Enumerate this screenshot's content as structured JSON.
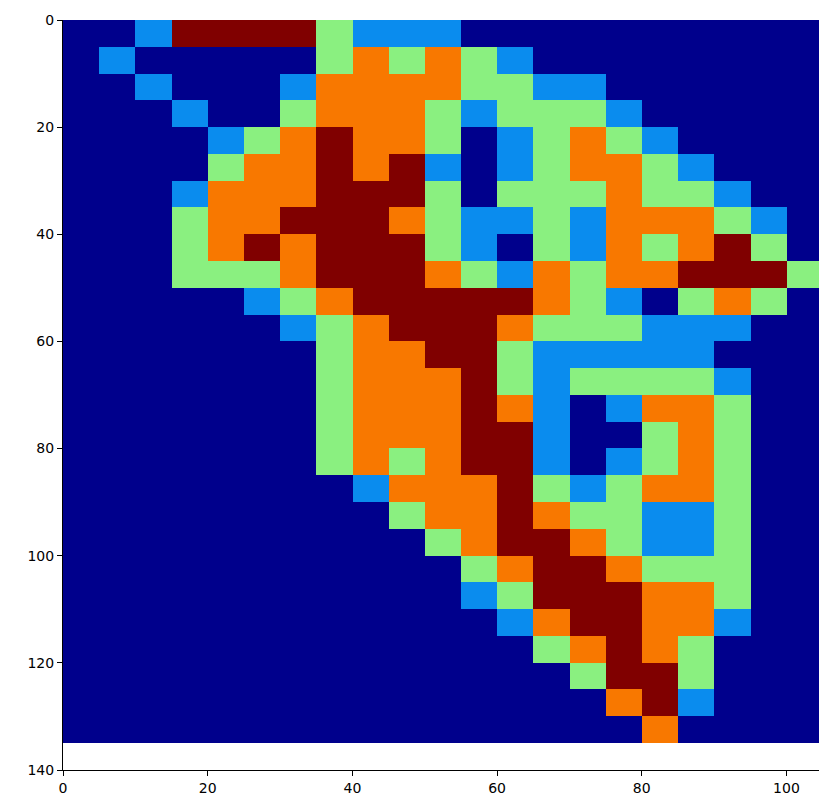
{
  "chart_data": {
    "type": "heatmap",
    "x": [
      2.5,
      7.5,
      12.5,
      17.5,
      22.5,
      27.5,
      32.5,
      37.5,
      42.5,
      47.5,
      52.5,
      57.5,
      62.5,
      67.5,
      72.5,
      77.5,
      82.5,
      87.5,
      92.5,
      97.5,
      102.5
    ],
    "y": [
      2.5,
      7.5,
      12.5,
      17.5,
      22.5,
      27.5,
      32.5,
      37.5,
      42.5,
      47.5,
      52.5,
      57.5,
      62.5,
      67.5,
      72.5,
      77.5,
      82.5,
      87.5,
      92.5,
      97.5,
      102.5,
      107.5,
      112.5,
      117.5,
      122.5,
      127.5,
      132.5
    ],
    "cells": [
      [
        0,
        0,
        1,
        4,
        4,
        4,
        4,
        2,
        1,
        1,
        1,
        0,
        0,
        0,
        0,
        0,
        0,
        0,
        0,
        0,
        0
      ],
      [
        0,
        1,
        0,
        0,
        0,
        0,
        0,
        2,
        3,
        2,
        3,
        2,
        1,
        0,
        0,
        0,
        0,
        0,
        0,
        0,
        0
      ],
      [
        0,
        0,
        1,
        0,
        0,
        0,
        1,
        3,
        3,
        3,
        3,
        2,
        2,
        1,
        1,
        0,
        0,
        0,
        0,
        0,
        0
      ],
      [
        0,
        0,
        0,
        1,
        0,
        0,
        2,
        3,
        3,
        3,
        2,
        1,
        2,
        2,
        2,
        1,
        0,
        0,
        0,
        0,
        0
      ],
      [
        0,
        0,
        0,
        0,
        1,
        2,
        3,
        4,
        3,
        3,
        2,
        0,
        1,
        2,
        3,
        2,
        1,
        0,
        0,
        0,
        0
      ],
      [
        0,
        0,
        0,
        0,
        2,
        3,
        3,
        4,
        3,
        4,
        1,
        0,
        1,
        2,
        3,
        3,
        2,
        1,
        0,
        0,
        0
      ],
      [
        0,
        0,
        0,
        1,
        3,
        3,
        3,
        4,
        4,
        4,
        2,
        0,
        2,
        2,
        2,
        3,
        2,
        2,
        1,
        0,
        0
      ],
      [
        0,
        0,
        0,
        2,
        3,
        3,
        4,
        4,
        4,
        3,
        2,
        1,
        1,
        2,
        1,
        3,
        3,
        3,
        2,
        1,
        0
      ],
      [
        0,
        0,
        0,
        2,
        3,
        4,
        3,
        4,
        4,
        4,
        2,
        1,
        0,
        2,
        1,
        3,
        2,
        3,
        4,
        2,
        0
      ],
      [
        0,
        0,
        0,
        2,
        2,
        2,
        3,
        4,
        4,
        4,
        3,
        2,
        1,
        3,
        2,
        3,
        3,
        4,
        4,
        4,
        2
      ],
      [
        0,
        0,
        0,
        0,
        0,
        1,
        2,
        3,
        4,
        4,
        4,
        4,
        4,
        3,
        2,
        1,
        0,
        2,
        3,
        2,
        0
      ],
      [
        0,
        0,
        0,
        0,
        0,
        0,
        1,
        2,
        3,
        4,
        4,
        4,
        3,
        2,
        2,
        2,
        1,
        1,
        1,
        0,
        0
      ],
      [
        0,
        0,
        0,
        0,
        0,
        0,
        0,
        2,
        3,
        3,
        4,
        4,
        2,
        1,
        1,
        1,
        1,
        1,
        0,
        0,
        0
      ],
      [
        0,
        0,
        0,
        0,
        0,
        0,
        0,
        2,
        3,
        3,
        3,
        4,
        2,
        1,
        2,
        2,
        2,
        2,
        1,
        0,
        0
      ],
      [
        0,
        0,
        0,
        0,
        0,
        0,
        0,
        2,
        3,
        3,
        3,
        4,
        3,
        1,
        0,
        1,
        3,
        3,
        2,
        0,
        0
      ],
      [
        0,
        0,
        0,
        0,
        0,
        0,
        0,
        2,
        3,
        3,
        3,
        4,
        4,
        1,
        0,
        0,
        2,
        3,
        2,
        0,
        0
      ],
      [
        0,
        0,
        0,
        0,
        0,
        0,
        0,
        2,
        3,
        2,
        3,
        4,
        4,
        1,
        0,
        1,
        2,
        3,
        2,
        0,
        0
      ],
      [
        0,
        0,
        0,
        0,
        0,
        0,
        0,
        0,
        1,
        3,
        3,
        3,
        4,
        2,
        1,
        2,
        3,
        3,
        2,
        0,
        0
      ],
      [
        0,
        0,
        0,
        0,
        0,
        0,
        0,
        0,
        0,
        2,
        3,
        3,
        4,
        3,
        2,
        2,
        1,
        1,
        2,
        0,
        0
      ],
      [
        0,
        0,
        0,
        0,
        0,
        0,
        0,
        0,
        0,
        0,
        2,
        3,
        4,
        4,
        3,
        2,
        1,
        1,
        2,
        0,
        0
      ],
      [
        0,
        0,
        0,
        0,
        0,
        0,
        0,
        0,
        0,
        0,
        0,
        2,
        3,
        4,
        4,
        3,
        2,
        2,
        2,
        0,
        0
      ],
      [
        0,
        0,
        0,
        0,
        0,
        0,
        0,
        0,
        0,
        0,
        0,
        1,
        2,
        4,
        4,
        4,
        3,
        3,
        2,
        0,
        0
      ],
      [
        0,
        0,
        0,
        0,
        0,
        0,
        0,
        0,
        0,
        0,
        0,
        0,
        1,
        3,
        4,
        4,
        3,
        3,
        1,
        0,
        0
      ],
      [
        0,
        0,
        0,
        0,
        0,
        0,
        0,
        0,
        0,
        0,
        0,
        0,
        0,
        2,
        3,
        4,
        3,
        2,
        0,
        0,
        0
      ],
      [
        0,
        0,
        0,
        0,
        0,
        0,
        0,
        0,
        0,
        0,
        0,
        0,
        0,
        0,
        2,
        4,
        4,
        2,
        0,
        0,
        0
      ],
      [
        0,
        0,
        0,
        0,
        0,
        0,
        0,
        0,
        0,
        0,
        0,
        0,
        0,
        0,
        0,
        3,
        4,
        1,
        0,
        0,
        0
      ],
      [
        0,
        0,
        0,
        0,
        0,
        0,
        0,
        0,
        0,
        0,
        0,
        0,
        0,
        0,
        0,
        0,
        3,
        0,
        0,
        0,
        0
      ]
    ],
    "zlim": [
      0,
      4
    ],
    "xlim": [
      0,
      104.5
    ],
    "ylim": [
      140,
      0
    ],
    "xticks": [
      0,
      20,
      40,
      60,
      80,
      100
    ],
    "yticks": [
      0,
      20,
      40,
      60,
      80,
      100,
      120,
      140
    ],
    "grid": false
  }
}
